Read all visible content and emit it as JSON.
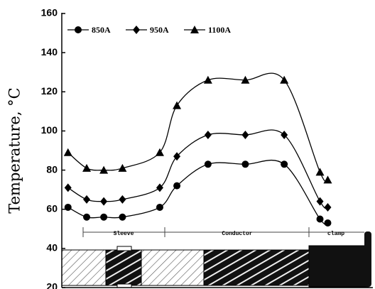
{
  "chart_data": {
    "type": "line",
    "y_label": "Temperature, °C",
    "x": [
      2,
      8,
      13.5,
      19.5,
      31.5,
      37,
      47,
      59,
      71.5,
      83,
      85.5
    ],
    "xlim": [
      0,
      100
    ],
    "series": [
      {
        "name": "850A",
        "color": "#000000",
        "marker": "circle",
        "values": [
          61,
          56,
          56,
          56,
          61,
          72,
          83,
          83,
          83,
          55,
          53
        ]
      },
      {
        "name": "950A",
        "color": "#000000",
        "marker": "diamond",
        "values": [
          71,
          65,
          64,
          65,
          71,
          87,
          98,
          98,
          98,
          64,
          61
        ]
      },
      {
        "name": "1100A",
        "color": "#000000",
        "marker": "triangle",
        "values": [
          89,
          81,
          80,
          81,
          89,
          113,
          126,
          126,
          126,
          79,
          75
        ]
      }
    ],
    "ylim": [
      20,
      160
    ],
    "yticks": [
      20,
      40,
      60,
      80,
      100,
      120,
      140,
      160
    ],
    "legend": "top-left",
    "annotations": [
      "Sleeve",
      "Conductor",
      "clamp"
    ]
  }
}
